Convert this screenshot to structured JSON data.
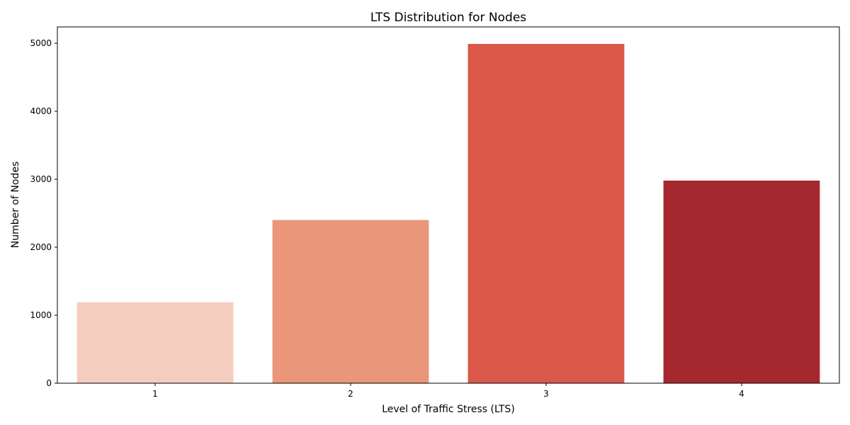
{
  "chart_data": {
    "type": "bar",
    "title": "LTS Distribution for Nodes",
    "xlabel": "Level of Traffic Stress (LTS)",
    "ylabel": "Number of Nodes",
    "categories": [
      "1",
      "2",
      "3",
      "4"
    ],
    "values": [
      1190,
      2400,
      4990,
      2980
    ],
    "colors": [
      "#f4cdbf",
      "#e9967a",
      "#da594a",
      "#a6282f"
    ],
    "ylim": [
      0,
      5240
    ],
    "yticks": [
      0,
      1000,
      2000,
      3000,
      4000,
      5000
    ],
    "grid": false,
    "legend": "none"
  }
}
